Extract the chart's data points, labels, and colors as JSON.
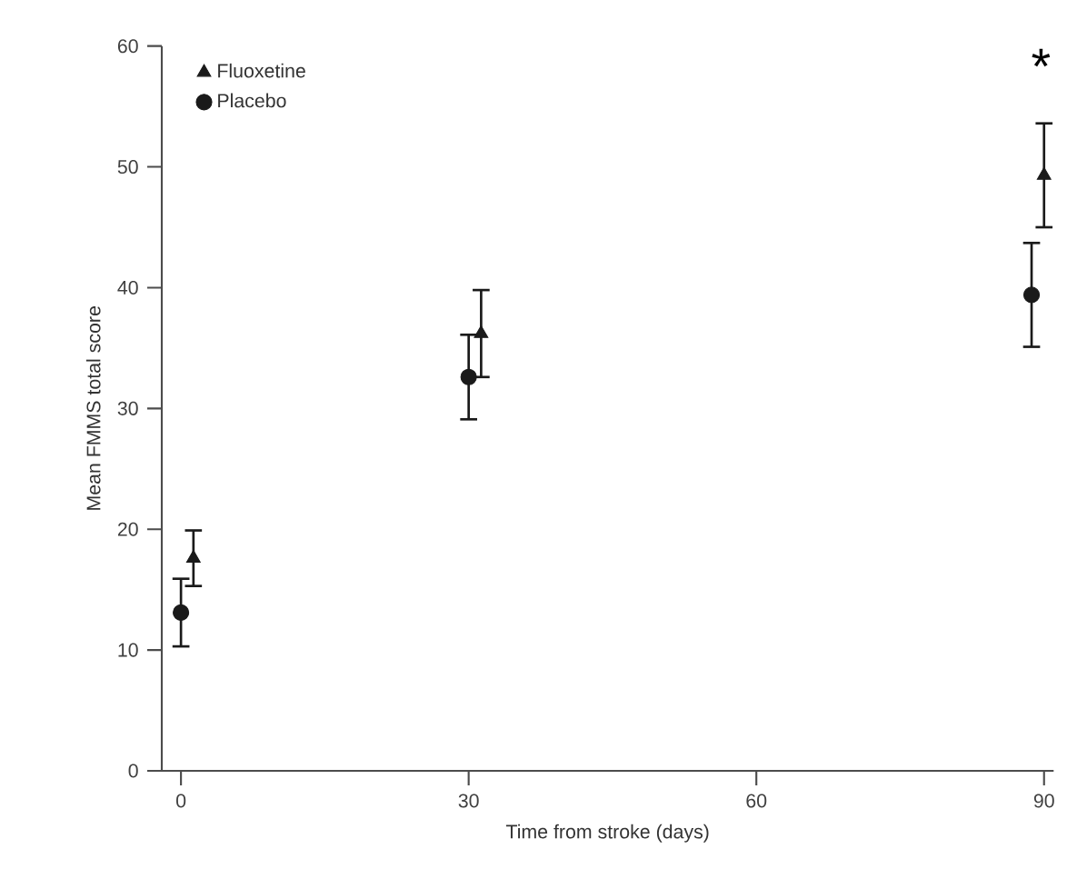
{
  "chart_data": {
    "type": "scatter",
    "xlabel": "Time from stroke (days)",
    "ylabel": "Mean FMMS total score",
    "xlim": [
      -2,
      91
    ],
    "ylim": [
      0,
      60
    ],
    "xticks": [
      0,
      30,
      60,
      90
    ],
    "yticks": [
      0,
      10,
      20,
      30,
      40,
      50,
      60
    ],
    "legend": "top left",
    "series": [
      {
        "name": "Fluoxetine",
        "color": "#1a1a1a",
        "marker": "triangle",
        "x": [
          1.3,
          31.3,
          90
        ],
        "values": [
          17.6,
          36.2,
          49.3
        ],
        "errors": [
          2.3,
          3.6,
          4.3
        ]
      },
      {
        "name": "Placebo",
        "color": "#1a1a1a",
        "marker": "circle",
        "x": [
          0,
          30,
          88.7
        ],
        "values": [
          13.1,
          32.6,
          39.4
        ],
        "errors": [
          2.8,
          3.5,
          4.3
        ]
      }
    ],
    "annotations": [
      "*"
    ]
  }
}
